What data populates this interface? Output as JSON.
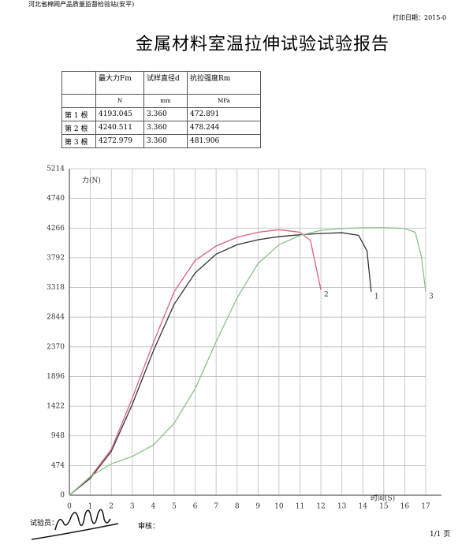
{
  "header": {
    "org": "河北省棉网产品质量监督检验站(安平)",
    "print_date": "打印日期：2015-0",
    "title": "金属材料室温拉伸试验试验报告"
  },
  "table": {
    "headers": [
      "",
      "最大力Fm",
      "试样直径d",
      "抗拉强度Rm"
    ],
    "units": [
      "",
      "N",
      "mm",
      "MPa"
    ],
    "rows": [
      [
        "第 1 根",
        "4193.045",
        "3.360",
        "472.891"
      ],
      [
        "第 2 根",
        "4240.511",
        "3.360",
        "478.244"
      ],
      [
        "第 3 根",
        "4272.979",
        "3.360",
        "481.906"
      ]
    ]
  },
  "chart_data": {
    "type": "line",
    "y_label": "力(N)",
    "x_label": "时间(S)",
    "xlim": [
      0,
      17
    ],
    "ylim": [
      0,
      5214
    ],
    "xticks": [
      0,
      1,
      2,
      3,
      4,
      5,
      6,
      7,
      8,
      9,
      10,
      11,
      12,
      13,
      14,
      15,
      16,
      17
    ],
    "yticks": [
      0,
      474,
      948,
      1422,
      1896,
      2370,
      2844,
      3318,
      3792,
      4266,
      4740,
      5214
    ],
    "grid": true,
    "series": [
      {
        "name": "1",
        "color": "#333333",
        "x": [
          0,
          1,
          2,
          3,
          4,
          5,
          6,
          7,
          8,
          9,
          10,
          11,
          12,
          13,
          13.8,
          14.2,
          14.4
        ],
        "values": [
          0,
          270,
          700,
          1450,
          2300,
          3050,
          3550,
          3850,
          4000,
          4080,
          4130,
          4160,
          4180,
          4193,
          4150,
          3900,
          3250
        ]
      },
      {
        "name": "2",
        "color": "#e0607a",
        "x": [
          0,
          1,
          2,
          3,
          4,
          5,
          6,
          7,
          8,
          9,
          10,
          11,
          11.5,
          12
        ],
        "values": [
          0,
          290,
          730,
          1550,
          2430,
          3250,
          3750,
          3980,
          4120,
          4200,
          4240,
          4200,
          4070,
          3280
        ]
      },
      {
        "name": "3",
        "color": "#8cc08c",
        "x": [
          0,
          1,
          2,
          3,
          4,
          5,
          6,
          7,
          8,
          9,
          10,
          11,
          12,
          13,
          14,
          15,
          16,
          16.5,
          16.8,
          17
        ],
        "values": [
          0,
          300,
          500,
          620,
          800,
          1150,
          1700,
          2450,
          3150,
          3700,
          4000,
          4150,
          4230,
          4260,
          4270,
          4273,
          4260,
          4200,
          3800,
          3250
        ]
      }
    ]
  },
  "footer": {
    "tester": "试验员：",
    "reviewer": "审核：",
    "page": "1/1 页"
  }
}
